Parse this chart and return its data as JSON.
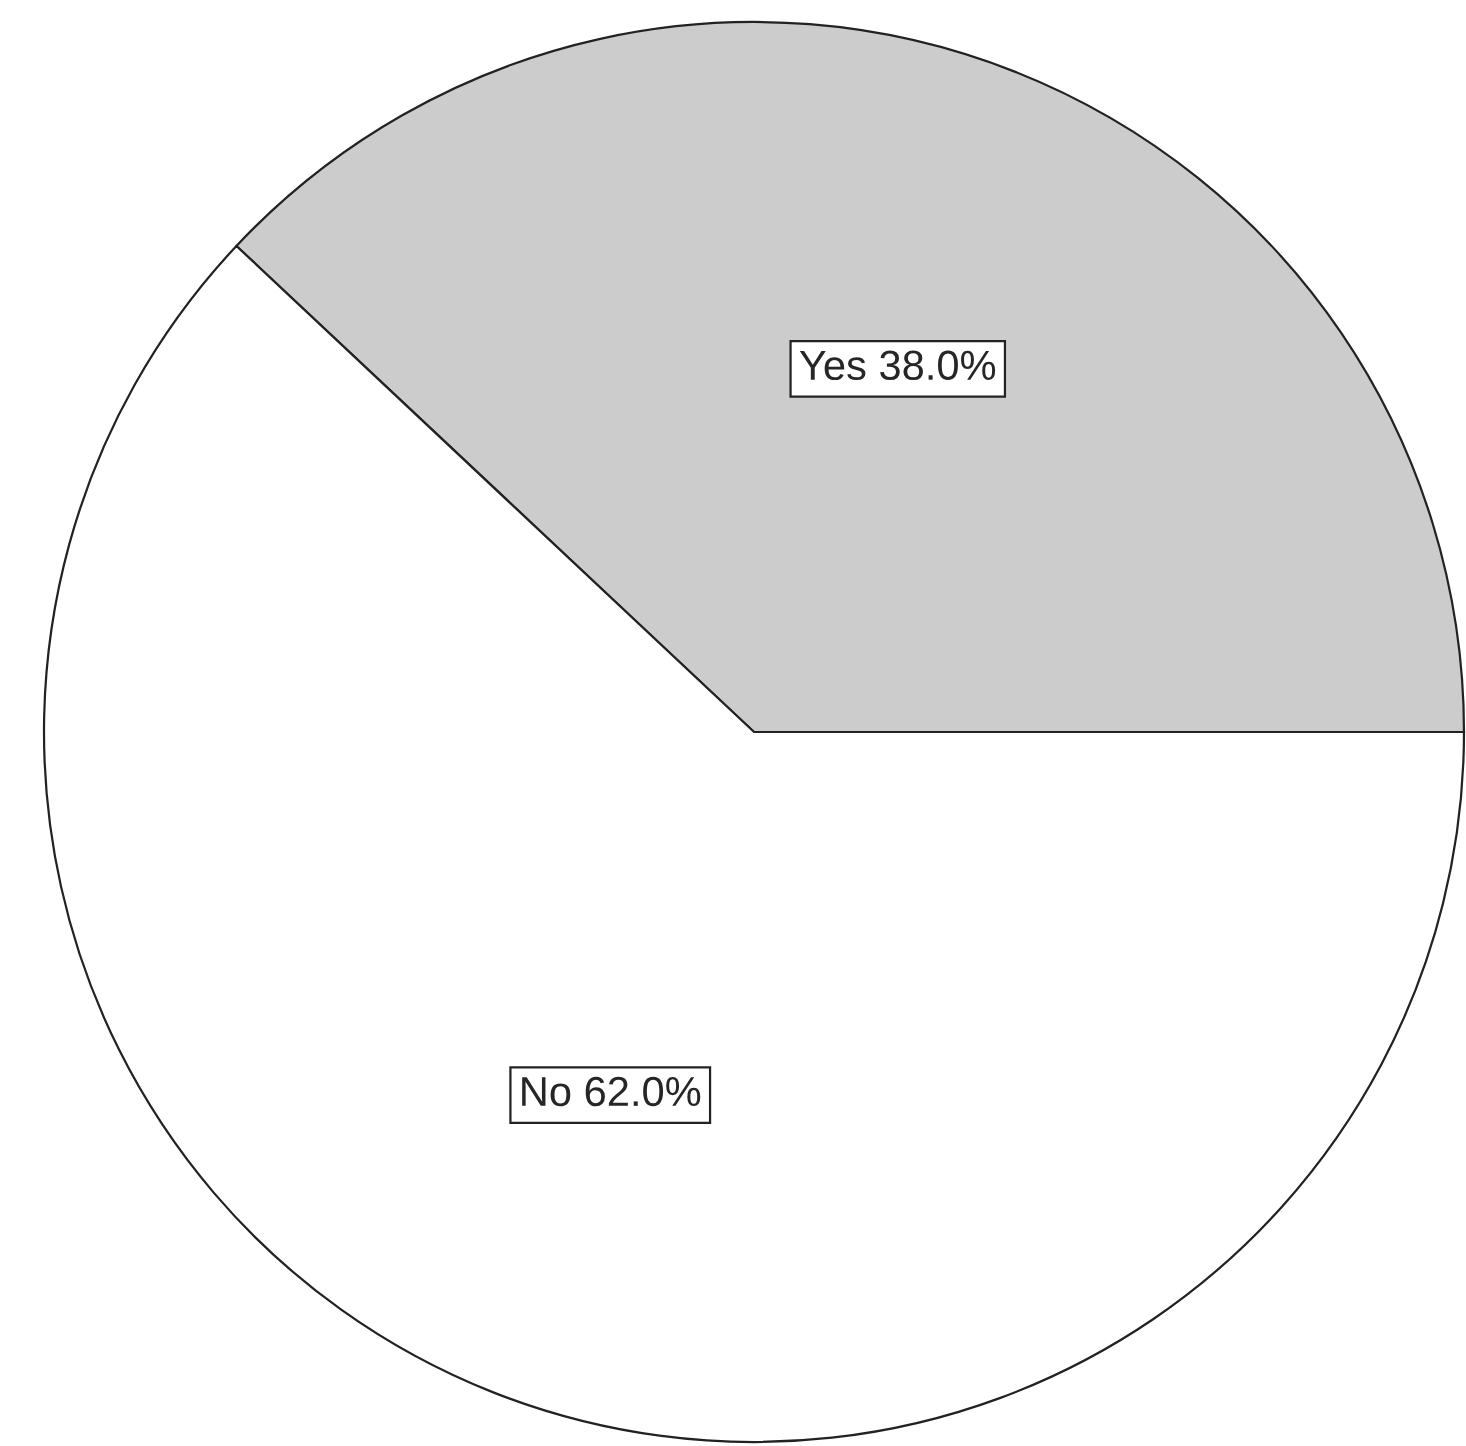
{
  "chart_data": {
    "type": "pie",
    "categories": [
      "Yes",
      "No"
    ],
    "values": [
      38.0,
      62.0
    ],
    "value_labels": [
      "38.0%",
      "62.0%"
    ],
    "colors": [
      "#cccccc",
      "#ffffff"
    ]
  }
}
